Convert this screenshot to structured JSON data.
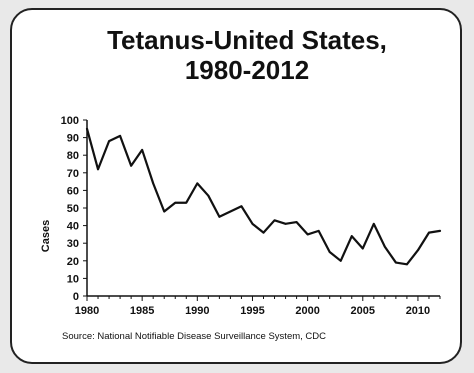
{
  "chart_data": {
    "type": "line",
    "title": "Tetanus-United States,",
    "subtitle": "1980-2012",
    "xlabel": "",
    "ylabel": "Cases",
    "xlim": [
      1980,
      2012
    ],
    "ylim": [
      0,
      100
    ],
    "x_ticks": [
      1980,
      1985,
      1990,
      1995,
      2000,
      2005,
      2010
    ],
    "y_ticks": [
      0,
      10,
      20,
      30,
      40,
      50,
      60,
      70,
      80,
      90,
      100
    ],
    "grid": false,
    "series": [
      {
        "x": [
          1980,
          1981,
          1982,
          1983,
          1984,
          1985,
          1986,
          1987,
          1988,
          1989,
          1990,
          1991,
          1992,
          1993,
          1994,
          1995,
          1996,
          1997,
          1998,
          1999,
          2000,
          2001,
          2002,
          2003,
          2004,
          2005,
          2006,
          2007,
          2008,
          2009,
          2010,
          2011,
          2012
        ],
        "values": [
          95,
          72,
          88,
          91,
          74,
          83,
          64,
          48,
          53,
          53,
          64,
          57,
          45,
          48,
          51,
          41,
          36,
          43,
          41,
          42,
          35,
          37,
          25,
          20,
          34,
          27,
          41,
          28,
          19,
          18,
          26,
          36,
          37
        ]
      }
    ],
    "line_color": "#111111"
  },
  "source": "Source: National Notifiable Disease Surveillance System, CDC"
}
